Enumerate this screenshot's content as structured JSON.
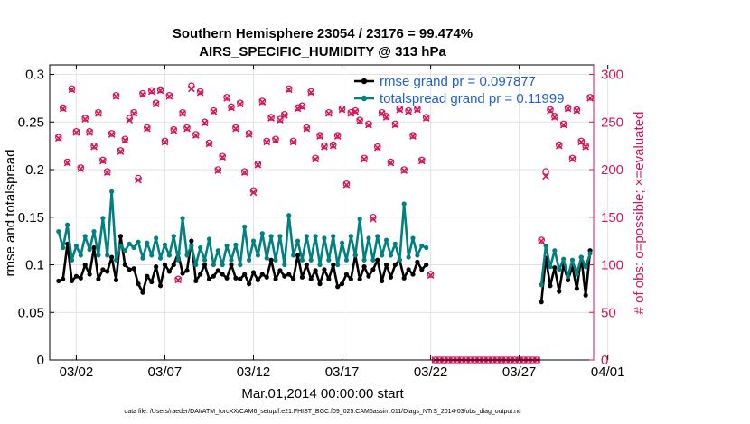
{
  "chart_data": {
    "type": "line",
    "title_line1": "Southern Hemisphere 23054 / 23176 = 99.474%",
    "title_line2": "AIRS_SPECIFIC_HUMIDITY @ 313 hPa",
    "xlabel": "Mar.01,2014 00:00:00 start",
    "ylabel_left": "rmse and totalspread",
    "ylabel_right": "# of obs: o=possible; ×=evaluated",
    "footer": "data file: /Users/raeder/DAI/ATM_forcXX/CAM6_setup/f.e21.FHIST_BGC.f09_025.CAM6assim.011/Diags_NTrS_2014-03/obs_diag_output.nc",
    "xlim": [
      0.5,
      31.2
    ],
    "ylim_left": [
      0,
      0.31
    ],
    "ylim_right": [
      0,
      310
    ],
    "xticks": [
      2,
      7,
      12,
      17,
      22,
      27,
      32
    ],
    "xtick_labels": [
      "03/02",
      "03/07",
      "03/12",
      "03/17",
      "03/22",
      "03/27",
      "04/01"
    ],
    "yticks_left": [
      0,
      0.05,
      0.1,
      0.15,
      0.2,
      0.25,
      0.3
    ],
    "ytick_labels_left": [
      "0",
      "0.05",
      "0.1",
      "0.15",
      "0.2",
      "0.25",
      "0.3"
    ],
    "yticks_right": [
      0,
      50,
      100,
      150,
      200,
      250,
      300
    ],
    "ytick_labels_right": [
      "0",
      "50",
      "100",
      "150",
      "200",
      "250",
      "300"
    ],
    "grid": true,
    "legend_position": "top-right",
    "colors": {
      "rmse": "#000000",
      "spread": "#008080",
      "obs": "#d4145a",
      "axis": "#000000"
    },
    "series": [
      {
        "name": "rmse grand pr = 0.097877",
        "x": [
          1.0,
          1.25,
          1.5,
          1.75,
          2.0,
          2.25,
          2.5,
          2.75,
          3.0,
          3.25,
          3.5,
          3.75,
          4.0,
          4.25,
          4.5,
          4.75,
          5.0,
          5.25,
          5.5,
          5.75,
          6.0,
          6.25,
          6.5,
          6.75,
          7.0,
          7.25,
          7.5,
          7.75,
          8.0,
          8.25,
          8.5,
          8.75,
          9.0,
          9.25,
          9.5,
          9.75,
          10.0,
          10.25,
          10.5,
          10.75,
          11.0,
          11.25,
          11.5,
          11.75,
          12.0,
          12.25,
          12.5,
          12.75,
          13.0,
          13.25,
          13.5,
          13.75,
          14.0,
          14.25,
          14.5,
          14.75,
          15.0,
          15.25,
          15.5,
          15.75,
          16.0,
          16.25,
          16.5,
          16.75,
          17.0,
          17.25,
          17.5,
          17.75,
          18.0,
          18.25,
          18.5,
          18.75,
          19.0,
          19.25,
          19.5,
          19.75,
          20.0,
          20.25,
          20.5,
          20.75,
          21.0,
          21.25,
          21.5,
          21.75
        ],
        "y": [
          0.083,
          0.085,
          0.122,
          0.083,
          0.088,
          0.086,
          0.1,
          0.09,
          0.118,
          0.085,
          0.095,
          0.093,
          0.108,
          0.084,
          0.13,
          0.1,
          0.095,
          0.096,
          0.08,
          0.071,
          0.088,
          0.082,
          0.098,
          0.078,
          0.1,
          0.093,
          0.1,
          0.112,
          0.091,
          0.094,
          0.125,
          0.083,
          0.09,
          0.1,
          0.085,
          0.088,
          0.094,
          0.09,
          0.086,
          0.1,
          0.086,
          0.085,
          0.09,
          0.08,
          0.092,
          0.084,
          0.09,
          0.087,
          0.105,
          0.085,
          0.094,
          0.088,
          0.09,
          0.085,
          0.11,
          0.087,
          0.1,
          0.085,
          0.094,
          0.08,
          0.095,
          0.085,
          0.1,
          0.077,
          0.08,
          0.09,
          0.085,
          0.11,
          0.085,
          0.098,
          0.088,
          0.095,
          0.105,
          0.083,
          0.1,
          0.087,
          0.1,
          0.105,
          0.086,
          0.095,
          0.09,
          0.103,
          0.095,
          0.1
        ]
      },
      {
        "name": "",
        "x": [
          28.25,
          28.5,
          28.75,
          29.0,
          29.25,
          29.5,
          29.75,
          30.0,
          30.25,
          30.5,
          30.75,
          31.0
        ],
        "y": [
          0.061,
          0.107,
          0.078,
          0.097,
          0.072,
          0.1,
          0.084,
          0.098,
          0.075,
          0.108,
          0.068,
          0.115
        ]
      },
      {
        "name": "totalspread grand pr = 0.11999",
        "x": [
          1.0,
          1.25,
          1.5,
          1.75,
          2.0,
          2.25,
          2.5,
          2.75,
          3.0,
          3.25,
          3.5,
          3.75,
          4.0,
          4.25,
          4.5,
          4.75,
          5.0,
          5.25,
          5.5,
          5.75,
          6.0,
          6.25,
          6.5,
          6.75,
          7.0,
          7.25,
          7.5,
          7.75,
          8.0,
          8.25,
          8.5,
          8.75,
          9.0,
          9.25,
          9.5,
          9.75,
          10.0,
          10.25,
          10.5,
          10.75,
          11.0,
          11.25,
          11.5,
          11.75,
          12.0,
          12.25,
          12.5,
          12.75,
          13.0,
          13.25,
          13.5,
          13.75,
          14.0,
          14.25,
          14.5,
          14.75,
          15.0,
          15.25,
          15.5,
          15.75,
          16.0,
          16.25,
          16.5,
          16.75,
          17.0,
          17.25,
          17.5,
          17.75,
          18.0,
          18.25,
          18.5,
          18.75,
          19.0,
          19.25,
          19.5,
          19.75,
          20.0,
          20.25,
          20.5,
          20.75,
          21.0,
          21.25,
          21.5,
          21.75
        ],
        "y": [
          0.135,
          0.118,
          0.142,
          0.105,
          0.12,
          0.11,
          0.13,
          0.116,
          0.135,
          0.11,
          0.149,
          0.11,
          0.177,
          0.105,
          0.12,
          0.115,
          0.122,
          0.118,
          0.124,
          0.107,
          0.123,
          0.11,
          0.128,
          0.107,
          0.121,
          0.11,
          0.13,
          0.105,
          0.149,
          0.11,
          0.12,
          0.1,
          0.118,
          0.105,
          0.127,
          0.1,
          0.115,
          0.1,
          0.12,
          0.105,
          0.121,
          0.1,
          0.14,
          0.105,
          0.125,
          0.11,
          0.133,
          0.107,
          0.13,
          0.105,
          0.13,
          0.1,
          0.152,
          0.11,
          0.125,
          0.105,
          0.13,
          0.105,
          0.13,
          0.1,
          0.128,
          0.105,
          0.13,
          0.1,
          0.123,
          0.105,
          0.13,
          0.11,
          0.148,
          0.105,
          0.128,
          0.105,
          0.13,
          0.11,
          0.126,
          0.11,
          0.122,
          0.105,
          0.164,
          0.108,
          0.128,
          0.11,
          0.12,
          0.118
        ]
      },
      {
        "name": "",
        "x": [
          28.25,
          28.5,
          28.75,
          29.0,
          29.25,
          29.5,
          29.75,
          30.0,
          30.25,
          30.5,
          30.75,
          31.0
        ],
        "y": [
          0.079,
          0.12,
          0.098,
          0.115,
          0.095,
          0.106,
          0.088,
          0.105,
          0.09,
          0.108,
          0.098,
          0.112
        ]
      }
    ],
    "obs_possible": {
      "x": [
        1.0,
        1.25,
        1.5,
        1.75,
        2.0,
        2.25,
        2.5,
        2.75,
        3.0,
        3.25,
        3.5,
        3.75,
        4.0,
        4.25,
        4.5,
        4.75,
        5.0,
        5.25,
        5.5,
        5.75,
        6.0,
        6.25,
        6.5,
        6.75,
        7.0,
        7.25,
        7.5,
        7.75,
        8.0,
        8.25,
        8.5,
        8.75,
        9.0,
        9.25,
        9.5,
        9.75,
        10.0,
        10.25,
        10.5,
        10.75,
        11.0,
        11.25,
        11.5,
        11.75,
        12.0,
        12.25,
        12.5,
        12.75,
        13.0,
        13.25,
        13.5,
        13.75,
        14.0,
        14.25,
        14.5,
        14.75,
        15.0,
        15.25,
        15.5,
        15.75,
        16.0,
        16.25,
        16.5,
        16.75,
        17.0,
        17.25,
        17.5,
        17.75,
        18.0,
        18.25,
        18.5,
        18.75,
        19.0,
        19.25,
        19.5,
        19.75,
        20.0,
        20.25,
        20.5,
        20.75,
        21.0,
        21.25,
        21.5,
        21.75,
        22.0,
        22.25,
        22.5,
        22.75,
        23.0,
        23.25,
        23.5,
        23.75,
        24.0,
        24.25,
        24.5,
        24.75,
        25.0,
        25.25,
        25.5,
        25.75,
        26.0,
        26.25,
        26.5,
        26.75,
        27.0,
        27.25,
        27.5,
        27.75,
        28.0,
        28.25,
        28.5,
        28.75,
        29.0,
        29.25,
        29.5,
        29.75,
        30.0,
        30.25,
        30.5,
        30.75,
        31.0
      ],
      "y": [
        234,
        265,
        208,
        285,
        240,
        202,
        254,
        240,
        225,
        260,
        210,
        198,
        238,
        278,
        220,
        232,
        254,
        260,
        191,
        280,
        244,
        283,
        270,
        284,
        230,
        278,
        242,
        85,
        260,
        244,
        288,
        237,
        282,
        250,
        228,
        262,
        200,
        214,
        276,
        266,
        244,
        270,
        198,
        238,
        178,
        206,
        272,
        230,
        255,
        232,
        253,
        258,
        285,
        230,
        265,
        267,
        244,
        282,
        212,
        236,
        225,
        260,
        226,
        236,
        264,
        185,
        260,
        262,
        252,
        212,
        248,
        150,
        224,
        260,
        256,
        208,
        248,
        264,
        200,
        262,
        236,
        264,
        210,
        255,
        90,
        0,
        0,
        0,
        0,
        0,
        0,
        0,
        0,
        0,
        0,
        0,
        0,
        0,
        0,
        0,
        0,
        0,
        0,
        0,
        0,
        0,
        0,
        0,
        0,
        126,
        198,
        263,
        256,
        226,
        248,
        265,
        212,
        263,
        230,
        225,
        276
      ]
    },
    "obs_evaluated": {
      "x": [
        1.0,
        1.25,
        1.5,
        1.75,
        2.0,
        2.25,
        2.5,
        2.75,
        3.0,
        3.25,
        3.5,
        3.75,
        4.0,
        4.25,
        4.5,
        4.75,
        5.0,
        5.25,
        5.5,
        5.75,
        6.0,
        6.25,
        6.5,
        6.75,
        7.0,
        7.25,
        7.5,
        7.75,
        8.0,
        8.25,
        8.5,
        8.75,
        9.0,
        9.25,
        9.5,
        9.75,
        10.0,
        10.25,
        10.5,
        10.75,
        11.0,
        11.25,
        11.5,
        11.75,
        12.0,
        12.25,
        12.5,
        12.75,
        13.0,
        13.25,
        13.5,
        13.75,
        14.0,
        14.25,
        14.5,
        14.75,
        15.0,
        15.25,
        15.5,
        15.75,
        16.0,
        16.25,
        16.5,
        16.75,
        17.0,
        17.25,
        17.5,
        17.75,
        18.0,
        18.25,
        18.5,
        18.75,
        19.0,
        19.25,
        19.5,
        19.75,
        20.0,
        20.25,
        20.5,
        20.75,
        21.0,
        21.25,
        21.5,
        21.75,
        22.0,
        22.25,
        22.5,
        22.75,
        23.0,
        23.25,
        23.5,
        23.75,
        24.0,
        24.25,
        24.5,
        24.75,
        25.0,
        25.25,
        25.5,
        25.75,
        26.0,
        26.25,
        26.5,
        26.75,
        27.0,
        27.25,
        27.5,
        27.75,
        28.0,
        28.25,
        28.5,
        28.75,
        29.0,
        29.25,
        29.5,
        29.75,
        30.0,
        30.25,
        30.5,
        30.75,
        31.0
      ],
      "y": [
        233,
        264,
        207,
        284,
        239,
        201,
        253,
        239,
        224,
        259,
        209,
        197,
        237,
        277,
        219,
        231,
        252,
        259,
        189,
        279,
        243,
        282,
        269,
        283,
        229,
        277,
        241,
        84,
        259,
        243,
        285,
        236,
        281,
        249,
        227,
        261,
        199,
        213,
        275,
        265,
        243,
        269,
        197,
        237,
        176,
        205,
        271,
        229,
        254,
        231,
        252,
        257,
        284,
        229,
        264,
        266,
        243,
        281,
        211,
        235,
        224,
        259,
        225,
        235,
        263,
        184,
        259,
        261,
        251,
        211,
        247,
        148,
        223,
        259,
        255,
        207,
        247,
        263,
        199,
        261,
        235,
        263,
        209,
        254,
        89,
        0,
        0,
        0,
        0,
        0,
        0,
        0,
        0,
        0,
        0,
        0,
        0,
        0,
        0,
        0,
        0,
        0,
        0,
        0,
        0,
        0,
        0,
        0,
        0,
        125,
        193,
        262,
        255,
        225,
        247,
        264,
        211,
        262,
        229,
        224,
        275
      ]
    }
  }
}
